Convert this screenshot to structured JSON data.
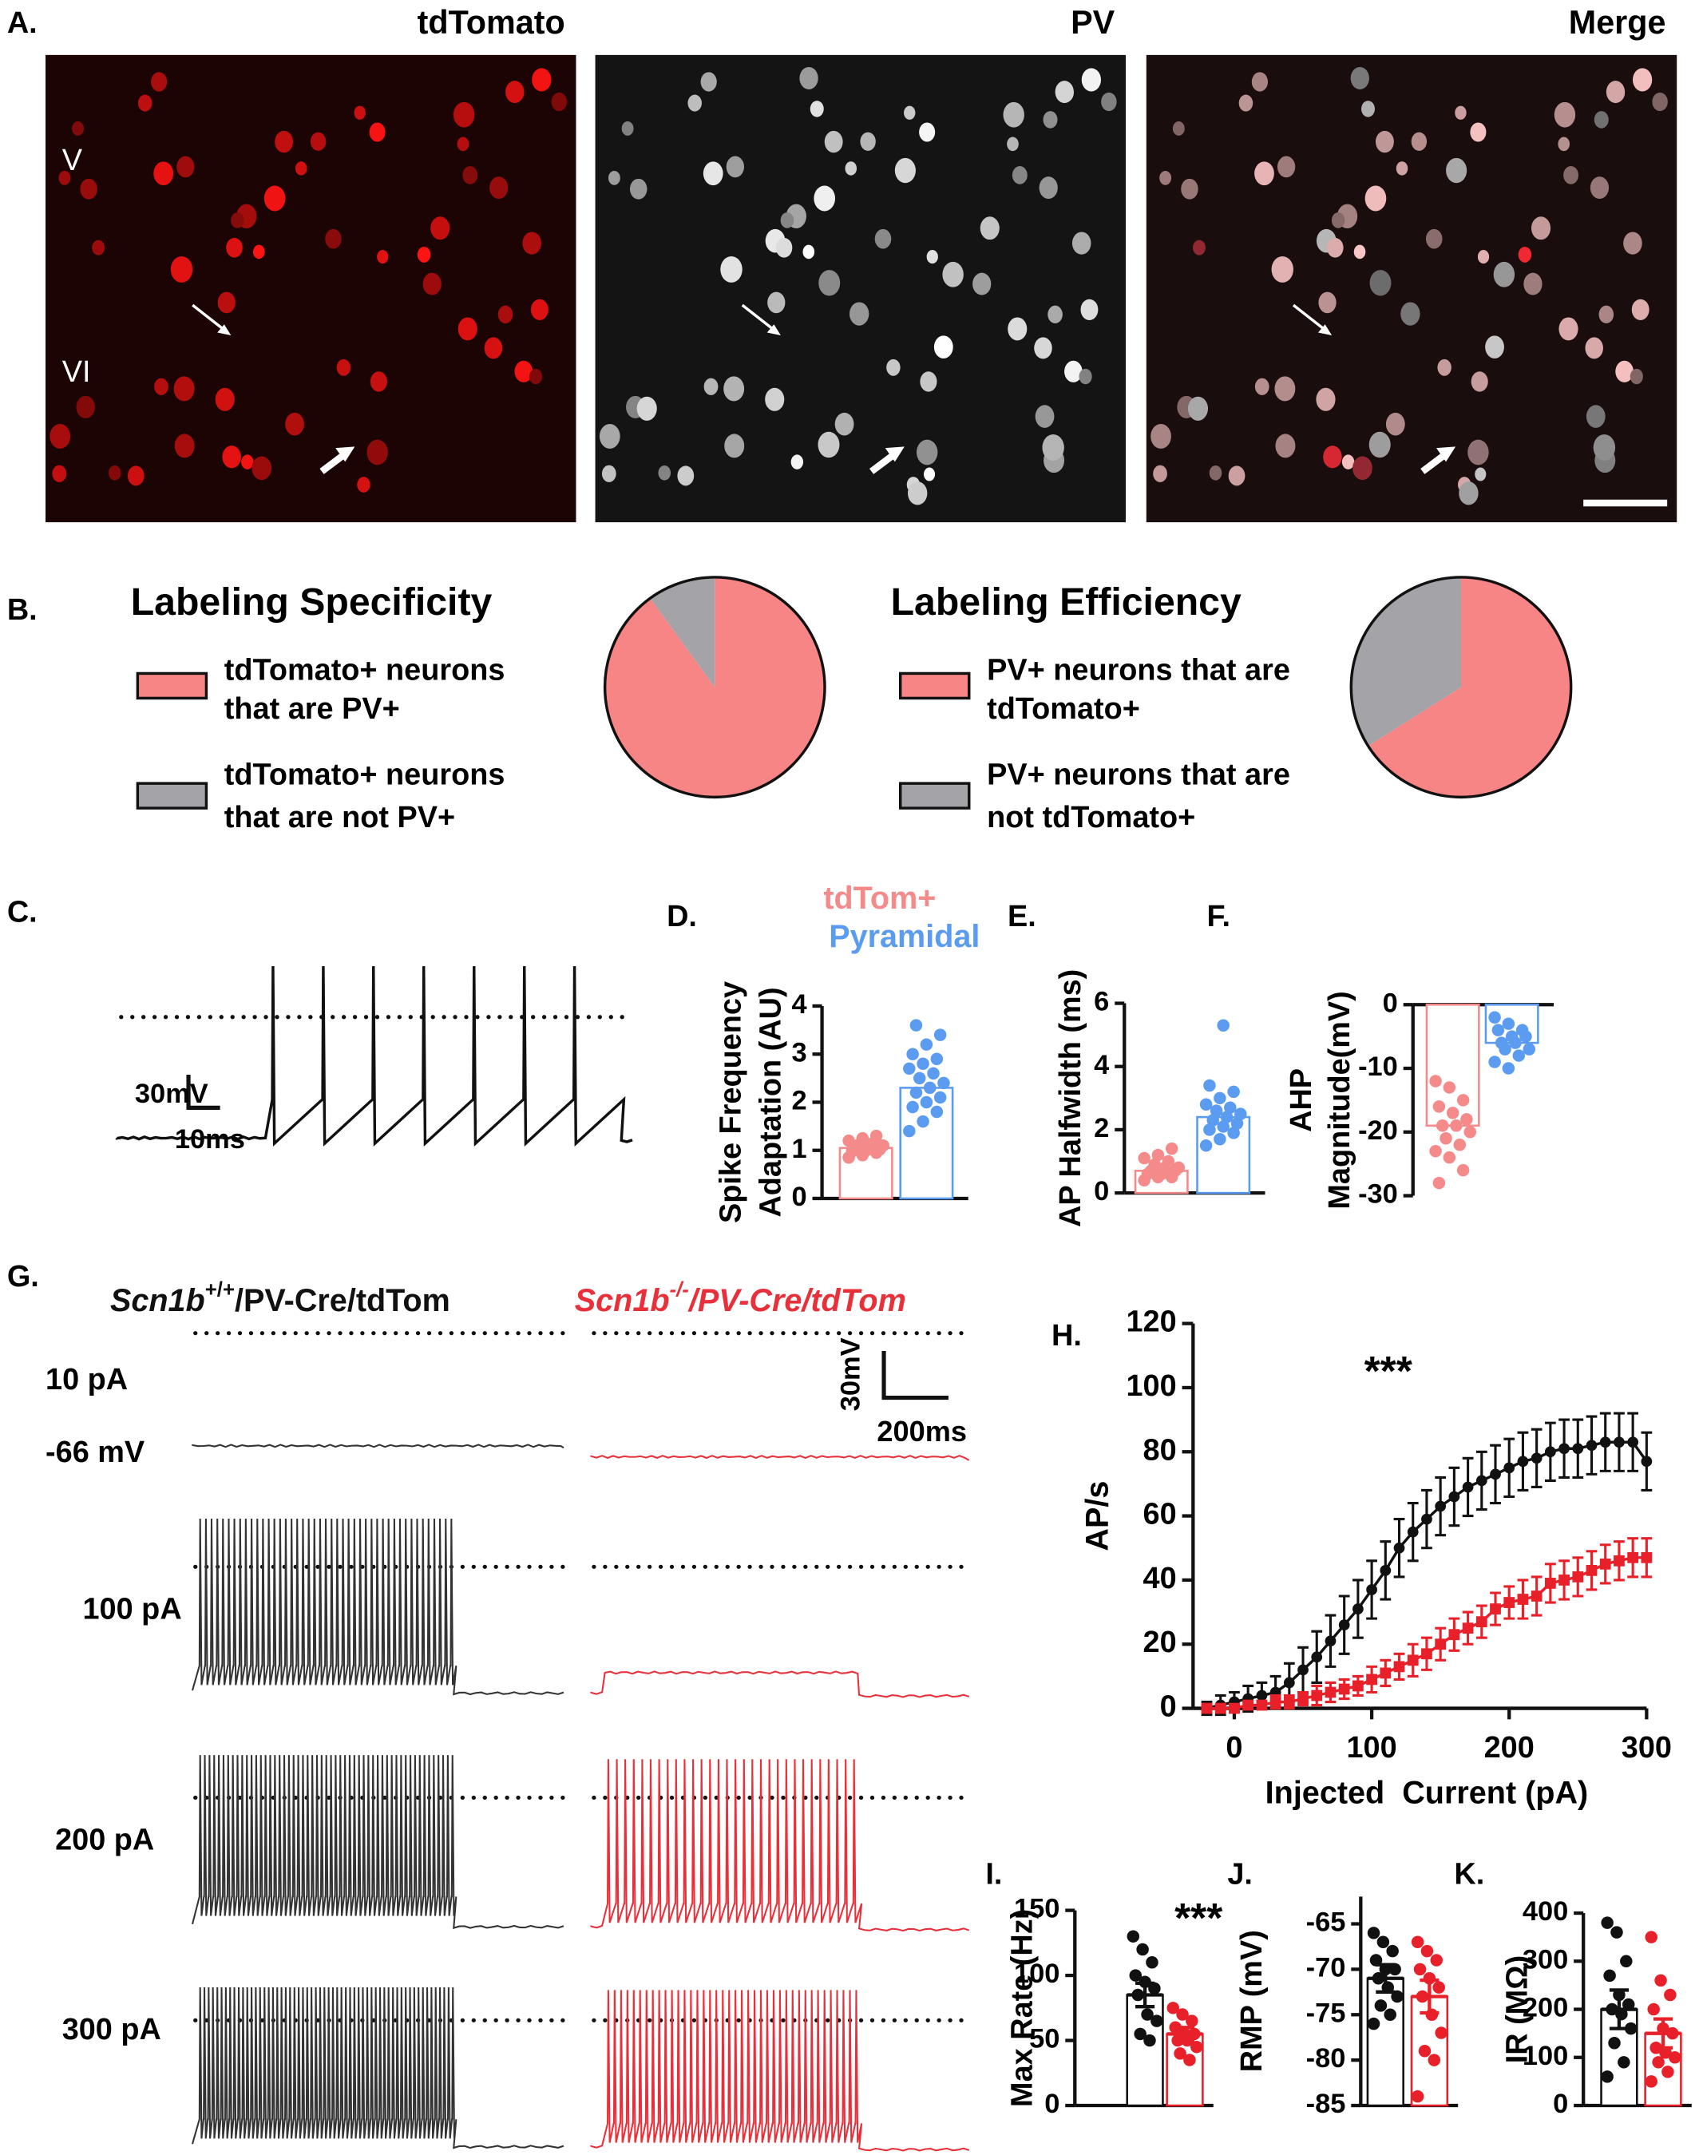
{
  "panel_labels": [
    "A.",
    "B.",
    "C.",
    "D.",
    "E.",
    "F.",
    "G.",
    "H.",
    "I.",
    "J.",
    "K."
  ],
  "micrographs": {
    "titles": [
      "tdTomato",
      "PV",
      "Merge"
    ],
    "layers": [
      "V",
      "VI"
    ]
  },
  "spike_trace": {
    "scale": {
      "voltage": "30mV",
      "time": "10ms"
    }
  },
  "traces": {
    "genotypes": [
      {
        "gene": "Scn1b",
        "sup": "+/+",
        "rest": "/PV-Cre/tdTom",
        "color": "#111111"
      },
      {
        "gene": "Scn1b",
        "sup": "-/-",
        "rest": "/PV-Cre/tdTom",
        "color": "#e8303a"
      }
    ],
    "currents": [
      "10 pA",
      "100 pA",
      "200 pA",
      "300 pA"
    ],
    "resting": "-66 mV",
    "scale": {
      "voltage": "30mV",
      "time": "200ms"
    }
  },
  "chart_data": [
    {
      "type": "pie",
      "title": "Labeling Specificity",
      "labels": [
        [
          "tdTomato+ neurons",
          "that are PV+"
        ],
        [
          "tdTomato+ neurons",
          "that are not PV+"
        ]
      ],
      "values": [
        90,
        10
      ],
      "colors": [
        "#f88585",
        "#a3a3a8"
      ]
    },
    {
      "type": "pie",
      "title": "Labeling Efficiency",
      "labels": [
        [
          "PV+ neurons that are",
          "tdTomato+"
        ],
        [
          "PV+ neurons that are",
          "not tdTomato+"
        ]
      ],
      "values": [
        66,
        34
      ],
      "colors": [
        "#f88585",
        "#a3a3a8"
      ]
    },
    {
      "type": "dotbar",
      "ylabel": [
        "Spike Frequency",
        "Adaptation (AU)"
      ],
      "ylim": [
        0,
        4
      ],
      "yticks": [
        0,
        1,
        2,
        3,
        4
      ],
      "series": [
        {
          "name": "tdTom+",
          "color": "#f58a8a",
          "values": [
            1.05
          ],
          "points": [
            0.85,
            0.9,
            0.95,
            0.98,
            1.0,
            1.02,
            1.05,
            1.08,
            1.1,
            1.12,
            1.15,
            1.2,
            1.25,
            1.3,
            1.0
          ]
        },
        {
          "name": "Pyramidal",
          "color": "#5b9cf0",
          "values": [
            2.3
          ],
          "points": [
            1.4,
            1.6,
            1.8,
            1.9,
            2.0,
            2.1,
            2.2,
            2.3,
            2.4,
            2.5,
            2.6,
            2.7,
            2.8,
            2.9,
            3.0,
            3.2,
            3.4,
            3.6
          ]
        }
      ]
    },
    {
      "type": "dotbar",
      "ylabel": [
        "AP Halfwidth (ms)"
      ],
      "ylim": [
        0,
        6
      ],
      "yticks": [
        0,
        2,
        4,
        6
      ],
      "series": [
        {
          "color": "#f58a8a",
          "values": [
            0.7
          ],
          "points": [
            0.4,
            0.5,
            0.5,
            0.6,
            0.6,
            0.7,
            0.7,
            0.8,
            0.8,
            0.9,
            1.0,
            1.1,
            1.2,
            1.4
          ]
        },
        {
          "color": "#5b9cf0",
          "values": [
            2.4
          ],
          "points": [
            1.5,
            1.7,
            1.9,
            2.0,
            2.1,
            2.2,
            2.3,
            2.4,
            2.5,
            2.6,
            2.7,
            2.8,
            3.0,
            3.2,
            3.4,
            5.3
          ]
        }
      ]
    },
    {
      "type": "dotbar",
      "ylabel": [
        "AHP",
        "Magnitude(mV)"
      ],
      "ylim": [
        -30,
        0
      ],
      "yticks": [
        0,
        -10,
        -20,
        -30
      ],
      "series": [
        {
          "color": "#f58a8a",
          "values": [
            -19
          ],
          "points": [
            -12,
            -13,
            -15,
            -16,
            -17,
            -18,
            -19,
            -19,
            -20,
            -21,
            -22,
            -23,
            -24,
            -26,
            -28
          ]
        },
        {
          "color": "#5b9cf0",
          "values": [
            -6
          ],
          "points": [
            -2,
            -3,
            -4,
            -4,
            -5,
            -5,
            -6,
            -6,
            -7,
            -7,
            -8,
            -9,
            -10
          ]
        }
      ]
    },
    {
      "type": "line",
      "ylabel": "AP/s",
      "xlabel": "Injected  Current (pA)",
      "annotation": "***",
      "xlim": [
        -30,
        300
      ],
      "xticks": [
        0,
        100,
        200,
        300
      ],
      "ylim": [
        0,
        120
      ],
      "yticks": [
        0,
        20,
        40,
        60,
        80,
        100,
        120
      ],
      "x": [
        -20,
        -10,
        0,
        10,
        20,
        30,
        40,
        50,
        60,
        70,
        80,
        90,
        100,
        110,
        120,
        130,
        140,
        150,
        160,
        170,
        180,
        190,
        200,
        210,
        220,
        230,
        240,
        250,
        260,
        270,
        280,
        290,
        300
      ],
      "series": [
        {
          "color": "#111111",
          "marker": "circle",
          "values": [
            0,
            1,
            2,
            3,
            4,
            5,
            8,
            12,
            16,
            21,
            26,
            31,
            37,
            43,
            50,
            55,
            59,
            63,
            66,
            69,
            71,
            73,
            75,
            77,
            78,
            80,
            81,
            81,
            82,
            83,
            83,
            83,
            77
          ],
          "errors": [
            2,
            3,
            3,
            4,
            4,
            5,
            6,
            7,
            8,
            8,
            9,
            9,
            9,
            9,
            9,
            9,
            9,
            9,
            9,
            9,
            9,
            9,
            9,
            9,
            9,
            9,
            9,
            9,
            9,
            9,
            9,
            9,
            9
          ]
        },
        {
          "color": "#e8202a",
          "marker": "square",
          "values": [
            0,
            0,
            0,
            1,
            1,
            2,
            2,
            3,
            4,
            5,
            6,
            7,
            9,
            11,
            13,
            15,
            17,
            20,
            23,
            25,
            27,
            31,
            33,
            34,
            35,
            39,
            40,
            41,
            43,
            45,
            46,
            47,
            47
          ],
          "errors": [
            1,
            1,
            1,
            1,
            1,
            2,
            2,
            2,
            3,
            3,
            3,
            3,
            4,
            4,
            4,
            5,
            5,
            5,
            5,
            5,
            5,
            5,
            5,
            6,
            6,
            6,
            6,
            6,
            6,
            6,
            6,
            6,
            6
          ]
        }
      ]
    },
    {
      "type": "dotbar",
      "ylabel": [
        "Max Rate (Hz)"
      ],
      "annotation": "***",
      "ylim": [
        0,
        150
      ],
      "yticks": [
        0,
        50,
        100,
        150
      ],
      "series": [
        {
          "color": "#111111",
          "values": [
            85
          ],
          "errors": [
            9
          ],
          "points": [
            130,
            120,
            110,
            100,
            95,
            90,
            85,
            70,
            65,
            55,
            50
          ]
        },
        {
          "color": "#e8202a",
          "values": [
            55
          ],
          "errors": [
            5
          ],
          "points": [
            75,
            70,
            65,
            60,
            55,
            55,
            50,
            50,
            45,
            40,
            35
          ]
        }
      ]
    },
    {
      "type": "dotbar",
      "ylabel": [
        "RMP (mV)"
      ],
      "ylim": [
        -85,
        -62
      ],
      "yticks": [
        -65,
        -70,
        -75,
        -80,
        -85
      ],
      "series": [
        {
          "color": "#111111",
          "values": [
            -71
          ],
          "errors": [
            1.5
          ],
          "points": [
            -66,
            -67,
            -68,
            -69,
            -70,
            -70,
            -71,
            -72,
            -73,
            -74,
            -75,
            -76
          ]
        },
        {
          "color": "#e8202a",
          "values": [
            -73
          ],
          "errors": [
            1.8
          ],
          "points": [
            -67,
            -68,
            -69,
            -70,
            -71,
            -72,
            -73,
            -75,
            -77,
            -79,
            -80,
            -84
          ]
        }
      ]
    },
    {
      "type": "dotbar",
      "ylabel": [
        "IR (MΩ)"
      ],
      "ylim": [
        0,
        400
      ],
      "yticks": [
        0,
        100,
        200,
        300,
        400
      ],
      "series": [
        {
          "color": "#111111",
          "values": [
            200
          ],
          "errors": [
            40
          ],
          "points": [
            380,
            360,
            300,
            270,
            230,
            210,
            200,
            190,
            160,
            130,
            90,
            60
          ]
        },
        {
          "color": "#e8202a",
          "values": [
            150
          ],
          "errors": [
            30
          ],
          "points": [
            350,
            260,
            230,
            200,
            160,
            150,
            120,
            110,
            100,
            90,
            70,
            50
          ]
        }
      ]
    }
  ]
}
